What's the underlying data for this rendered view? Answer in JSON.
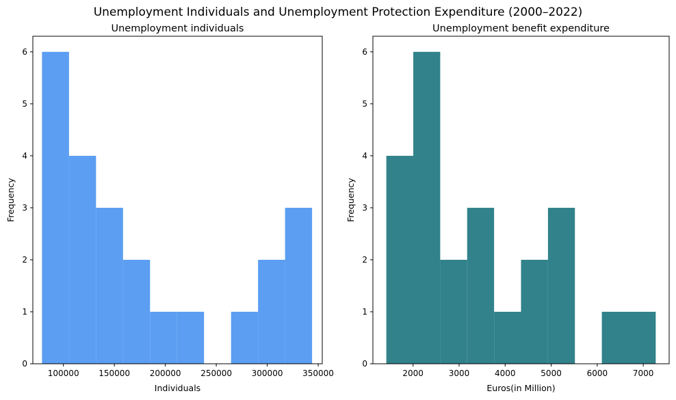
{
  "title": "Unemployment Individuals and Unemployment Protection Expenditure (2000–2022)",
  "chart_data": [
    {
      "type": "bar",
      "subtype": "histogram",
      "title": "Unemployment individuals",
      "xlabel": "Individuals",
      "ylabel": "Frequency",
      "color": "#5b9ef2",
      "bin_edges": [
        79000,
        105500,
        132000,
        158500,
        185000,
        211500,
        238000,
        264500,
        291000,
        317500,
        344000
      ],
      "counts": [
        6,
        4,
        3,
        2,
        1,
        1,
        0,
        1,
        2,
        3
      ],
      "xlim": [
        70000,
        354000
      ],
      "ylim": [
        0,
        6.3
      ],
      "xticks": [
        100000,
        150000,
        200000,
        250000,
        300000,
        350000
      ],
      "xtick_labels": [
        "100000",
        "150000",
        "200000",
        "250000",
        "300000",
        "350000"
      ],
      "yticks": [
        0,
        1,
        2,
        3,
        4,
        5,
        6
      ],
      "ytick_labels": [
        "0",
        "1",
        "2",
        "3",
        "4",
        "5",
        "6"
      ]
    },
    {
      "type": "bar",
      "subtype": "histogram",
      "title": "Unemployment benefit expenditure",
      "xlabel": "Euros(in Million)",
      "ylabel": "Frequency",
      "color": "#31828a",
      "bin_edges": [
        1420,
        2005,
        2590,
        3175,
        3760,
        4345,
        4930,
        5515,
        6100,
        6685,
        7270
      ],
      "counts": [
        4,
        6,
        2,
        3,
        1,
        2,
        3,
        0,
        1,
        1
      ],
      "xlim": [
        1128,
        7562
      ],
      "ylim": [
        0,
        6.3
      ],
      "xticks": [
        2000,
        3000,
        4000,
        5000,
        6000,
        7000
      ],
      "xtick_labels": [
        "2000",
        "3000",
        "4000",
        "5000",
        "6000",
        "7000"
      ],
      "yticks": [
        0,
        1,
        2,
        3,
        4,
        5,
        6
      ],
      "ytick_labels": [
        "0",
        "1",
        "2",
        "3",
        "4",
        "5",
        "6"
      ]
    }
  ]
}
